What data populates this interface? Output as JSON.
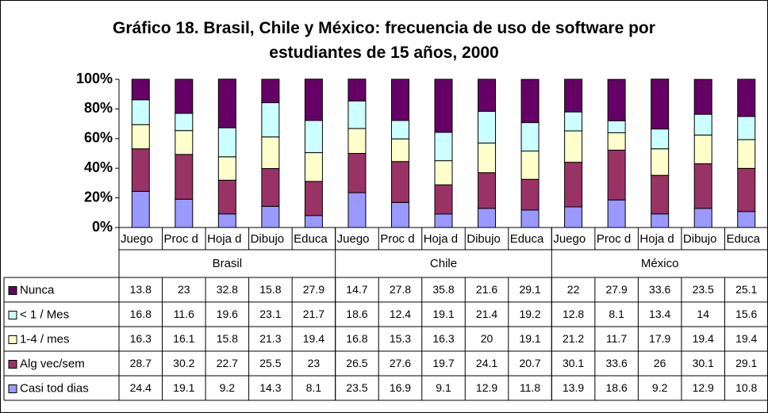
{
  "chart_data": {
    "type": "bar",
    "stacked": true,
    "title": "Gráfico 18. Brasil, Chile y México: frecuencia de uso de software por estudiantes de 15 años, 2000",
    "categories": [
      "Juego",
      "Proc d",
      "Hoja d",
      "Dibujo",
      "Educa",
      "Juego",
      "Proc d",
      "Hoja d",
      "Dibujo",
      "Educa",
      "Juego",
      "Proc d",
      "Hoja d",
      "Dibujo",
      "Educa"
    ],
    "groups": [
      "Brasil",
      "Chile",
      "México"
    ],
    "ylim": [
      0,
      100
    ],
    "yticks": [
      {
        "value": 0,
        "label": "0%"
      },
      {
        "value": 20,
        "label": "20%"
      },
      {
        "value": 40,
        "label": "40%"
      },
      {
        "value": 60,
        "label": "60%"
      },
      {
        "value": 80,
        "label": "80%"
      },
      {
        "value": 100,
        "label": "100%"
      }
    ],
    "series": [
      {
        "name": "Casi tod dias",
        "color": "#9999ff",
        "values": [
          24.4,
          19.1,
          9.2,
          14.3,
          8.1,
          23.5,
          16.9,
          9.1,
          12.9,
          11.8,
          13.9,
          18.6,
          9.2,
          12.9,
          10.8
        ]
      },
      {
        "name": "Alg vec/sem",
        "color": "#993366",
        "values": [
          28.7,
          30.2,
          22.7,
          25.5,
          23,
          26.5,
          27.6,
          19.7,
          24.1,
          20.7,
          30.1,
          33.6,
          26,
          30.1,
          29.1
        ]
      },
      {
        "name": "1-4 / mes",
        "color": "#ffffcc",
        "values": [
          16.3,
          16.1,
          15.8,
          21.3,
          19.4,
          16.8,
          15.3,
          16.3,
          20,
          19.1,
          21.2,
          11.7,
          17.9,
          19.4,
          19.4
        ]
      },
      {
        "name": "< 1 / Mes",
        "color": "#ccffff",
        "values": [
          16.8,
          11.6,
          19.6,
          23.1,
          21.7,
          18.6,
          12.4,
          19.1,
          21.4,
          19.2,
          12.8,
          8.1,
          13.4,
          14,
          15.6
        ]
      },
      {
        "name": "Nunca",
        "color": "#660066",
        "values": [
          13.8,
          23,
          32.8,
          15.8,
          27.9,
          14.7,
          27.8,
          35.8,
          21.6,
          29.1,
          22,
          27.9,
          33.6,
          23.5,
          25.1
        ]
      }
    ]
  }
}
